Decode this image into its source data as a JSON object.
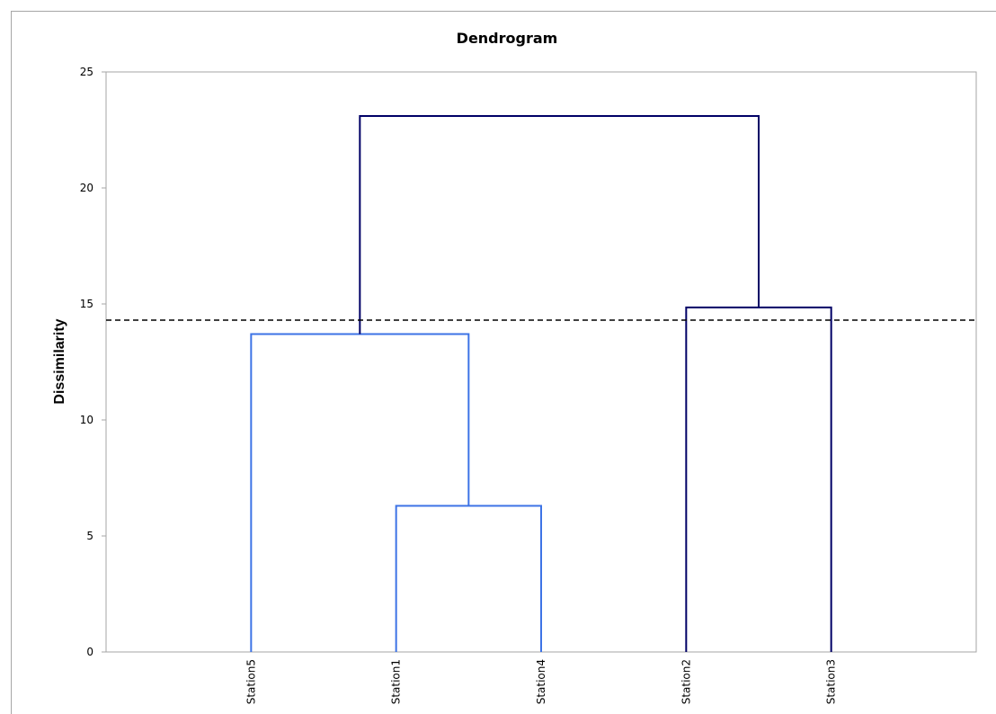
{
  "chart_data": {
    "type": "dendrogram",
    "title": "Dendrogram",
    "xlabel": "",
    "ylabel": "Dissimilarity",
    "ylim": [
      0,
      25
    ],
    "yticks": [
      "0",
      "5",
      "10",
      "15",
      "20",
      "25"
    ],
    "ytick_values": [
      0,
      5,
      10,
      15,
      20,
      25
    ],
    "leaves": [
      "Station5",
      "Station1",
      "Station4",
      "Station2",
      "Station3"
    ],
    "cut_line": {
      "value": 14.3,
      "style": "dashed",
      "color": "#000000"
    },
    "merges": [
      {
        "id": "m1",
        "left": "Station1",
        "right": "Station4",
        "height": 6.3,
        "color": "#3d73e6"
      },
      {
        "id": "m2",
        "left": "Station5",
        "right": "m1",
        "height": 13.7,
        "color": "#3d73e6"
      },
      {
        "id": "m3",
        "left": "Station2",
        "right": "Station3",
        "height": 14.85,
        "color": "#000066"
      },
      {
        "id": "m4",
        "left": "m2",
        "right": "m3",
        "height": 23.1,
        "color": "#000066"
      }
    ],
    "grid": false,
    "legend": "none",
    "colors": {
      "cluster_1": "#3d73e6",
      "cluster_2": "#000066",
      "axis": "#a6a6a6"
    }
  }
}
